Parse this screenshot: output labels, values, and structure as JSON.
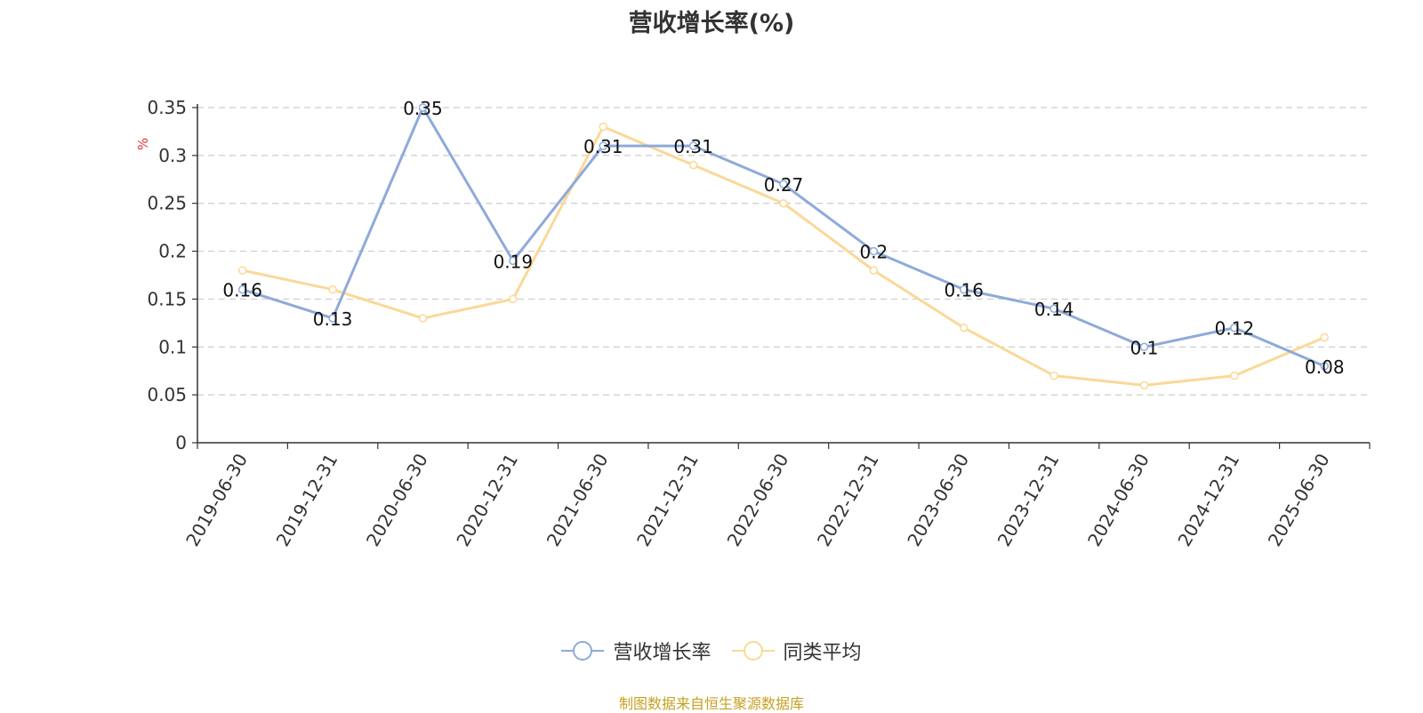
{
  "title": "营收增长率(%)",
  "source": "制图数据来自恒生聚源数据库",
  "colors": {
    "series1": "#8eaad9",
    "series2": "#fbd898",
    "unit": "#e03131",
    "source": "#c7a023",
    "grid": "#cccccc",
    "axis": "#333333"
  },
  "chart_data": {
    "type": "line",
    "title": "营收增长率(%)",
    "ylabel": "%",
    "xlabel": "",
    "ylim": [
      0,
      0.35
    ],
    "yticks": [
      0,
      0.05,
      0.1,
      0.15,
      0.2,
      0.25,
      0.3,
      0.35
    ],
    "ytick_labels": [
      "0",
      "0.05",
      "0.1",
      "0.15",
      "0.2",
      "0.25",
      "0.3",
      "0.35"
    ],
    "grid": true,
    "legend_position": "bottom",
    "categories": [
      "2019-06-30",
      "2019-12-31",
      "2020-06-30",
      "2020-12-31",
      "2021-06-30",
      "2021-12-31",
      "2022-06-30",
      "2022-12-31",
      "2023-06-30",
      "2023-12-31",
      "2024-06-30",
      "2024-12-31",
      "2025-06-30"
    ],
    "series": [
      {
        "name": "营收增长率",
        "values": [
          0.16,
          0.13,
          0.35,
          0.19,
          0.31,
          0.31,
          0.27,
          0.2,
          0.16,
          0.14,
          0.1,
          0.12,
          0.08
        ],
        "data_labels": [
          "0.16",
          "0.13",
          "0.35",
          "0.19",
          "0.31",
          "0.31",
          "0.27",
          "0.2",
          "0.16",
          "0.14",
          "0.1",
          "0.12",
          "0.08"
        ]
      },
      {
        "name": "同类平均",
        "values": [
          0.18,
          0.16,
          0.13,
          0.15,
          0.33,
          0.29,
          0.25,
          0.18,
          0.12,
          0.07,
          0.06,
          0.07,
          0.11
        ]
      }
    ]
  }
}
